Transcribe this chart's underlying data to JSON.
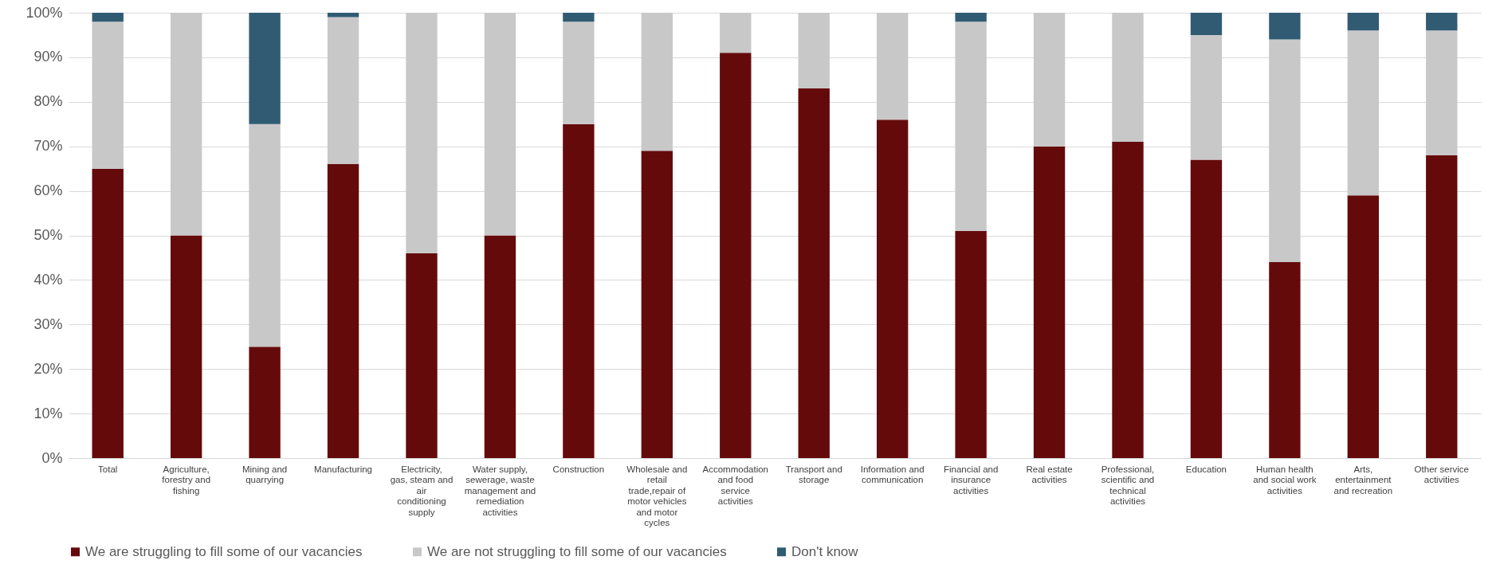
{
  "chart_data": {
    "type": "bar",
    "stacked": true,
    "categories": [
      "Total",
      "Agriculture, forestry and fishing",
      "Mining and quarrying",
      "Manufacturing",
      "Electricity, gas, steam and air conditioning supply",
      "Water supply, sewerage, waste management and remediation activities",
      "Construction",
      "Wholesale and retail trade,repair of motor vehicles and motor cycles",
      "Accommodation and food service activities",
      "Transport and storage",
      "Information and communication",
      "Financial and insurance activities",
      "Real estate activities",
      "Professional, scientific and technical activities",
      "Education",
      "Human health and social work activities",
      "Arts, entertainment and recreation",
      "Other service activities"
    ],
    "series": [
      {
        "name": "We are struggling to fill some of our vacancies",
        "color": "#650a0b",
        "values": [
          65,
          50,
          25,
          66,
          46,
          50,
          75,
          69,
          91,
          83,
          76,
          51,
          70,
          71,
          67,
          44,
          59,
          68
        ]
      },
      {
        "name": "We are not struggling to fill some of our vacancies",
        "color": "#c8c8c8",
        "values": [
          33,
          50,
          50,
          33,
          54,
          50,
          23,
          31,
          9,
          17,
          24,
          47,
          30,
          29,
          28,
          50,
          37,
          28
        ]
      },
      {
        "name": "Don't know",
        "color": "#315b73",
        "values": [
          2,
          0,
          25,
          1,
          0,
          0,
          2,
          0,
          0,
          0,
          0,
          2,
          0,
          0,
          5,
          6,
          4,
          4
        ]
      }
    ],
    "ylim": [
      0,
      100
    ],
    "yticks": [
      {
        "value": 0,
        "label": "0%"
      },
      {
        "value": 10,
        "label": "10%"
      },
      {
        "value": 20,
        "label": "20%"
      },
      {
        "value": 30,
        "label": "30%"
      },
      {
        "value": 40,
        "label": "40%"
      },
      {
        "value": 50,
        "label": "50%"
      },
      {
        "value": 60,
        "label": "60%"
      },
      {
        "value": 70,
        "label": "70%"
      },
      {
        "value": 80,
        "label": "80%"
      },
      {
        "value": 90,
        "label": "90%"
      },
      {
        "value": 100,
        "label": "100%"
      }
    ],
    "grid": "y",
    "legend": "bottom"
  }
}
